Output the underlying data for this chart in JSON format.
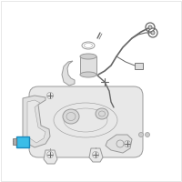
{
  "bg_color": "#ffffff",
  "line_color": "#999999",
  "highlight_color": "#3bbde8",
  "dark_color": "#666666",
  "fig_width": 2.0,
  "fig_height": 2.0,
  "dpi": 100,
  "tank_color": "#e8e8e8",
  "tank_edge": "#888888"
}
